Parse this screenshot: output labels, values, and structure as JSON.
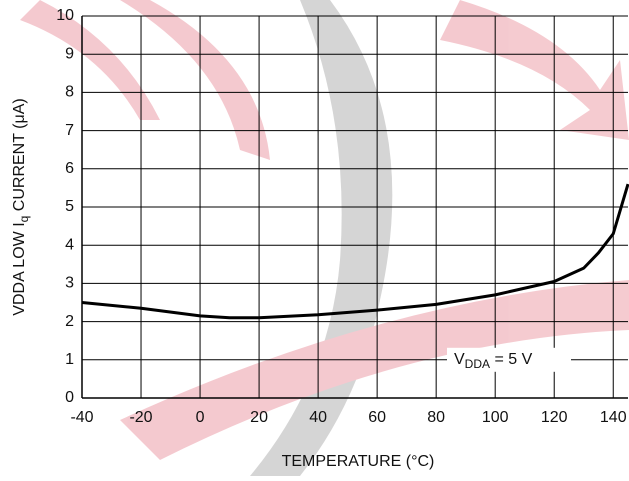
{
  "chart_data": {
    "type": "line",
    "x_label": "TEMPERATURE (°C)",
    "y_label": [
      "VDDA LOW I",
      "q",
      " CURRENT (μA)"
    ],
    "annotation": [
      "V",
      "DDA",
      " = 5 V"
    ],
    "x": [
      -40,
      -20,
      0,
      10,
      20,
      40,
      60,
      80,
      100,
      120,
      130,
      135,
      140,
      145
    ],
    "series": [
      {
        "color": "#000000",
        "values": [
          2.5,
          2.35,
          2.15,
          2.1,
          2.1,
          2.18,
          2.3,
          2.45,
          2.7,
          3.05,
          3.4,
          3.8,
          4.3,
          5.6
        ]
      }
    ],
    "xlim": [
      -40,
      145
    ],
    "xticks": [
      -40,
      -20,
      0,
      20,
      40,
      60,
      80,
      100,
      120,
      140
    ],
    "ylim": [
      0,
      10
    ],
    "yticks": [
      0,
      1,
      2,
      3,
      4,
      5,
      6,
      7,
      8,
      9,
      10
    ],
    "grid": true
  }
}
